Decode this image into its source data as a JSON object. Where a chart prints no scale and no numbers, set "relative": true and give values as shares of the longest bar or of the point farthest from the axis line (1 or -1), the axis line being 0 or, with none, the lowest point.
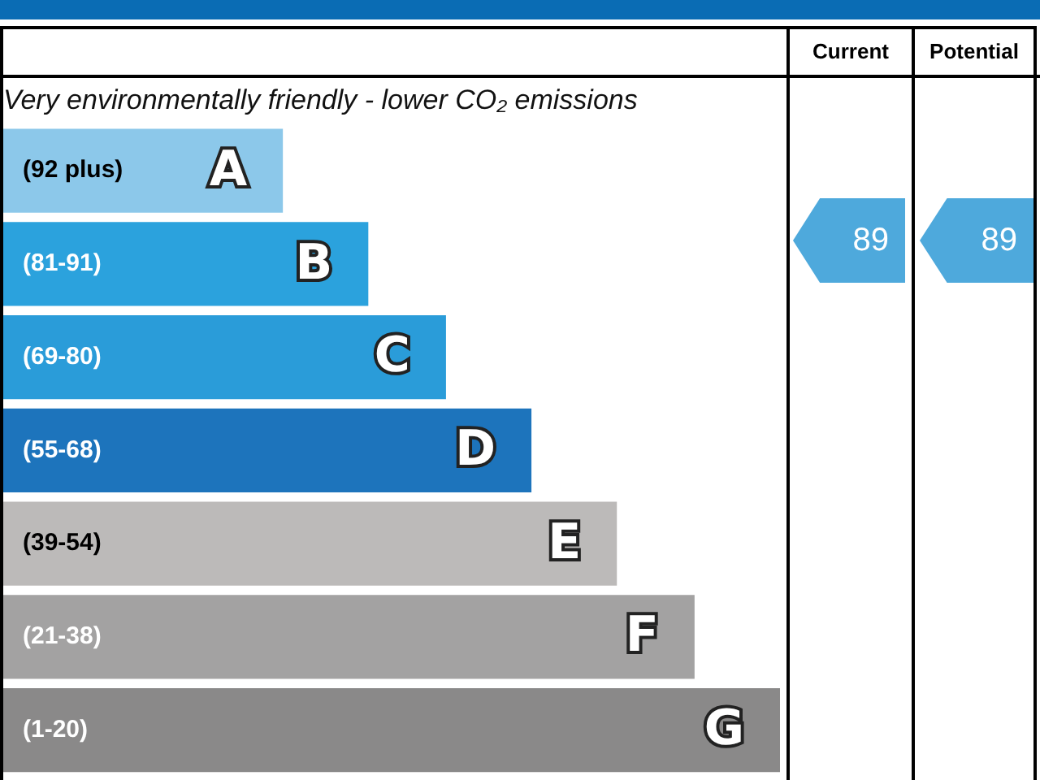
{
  "chart_data": {
    "type": "bar",
    "orientation": "horizontal",
    "relative": true,
    "legend": false,
    "tick_labels": "y",
    "subtitle": "Very environmentally friendly - lower CO₂ emissions",
    "categories": [
      "(92 plus)",
      "(81-91)",
      "(69-80)",
      "(55-68)",
      "(39-54)",
      "(21-38)",
      "(1-20)"
    ],
    "values": [
      0.36,
      0.47,
      0.57,
      0.68,
      0.79,
      0.89,
      1
    ],
    "colors": [
      "#8cc8ea",
      "#2ba2dd",
      "#2a9cd9",
      "#1d74bc",
      "#bcbab9",
      "#a3a2a2",
      "#8a8989"
    ],
    "annotations": [
      "Current",
      "Potential",
      {
        "text": "A",
        "x": 0.36,
        "y": "(92 plus)"
      },
      {
        "text": "B",
        "x": 0.47,
        "y": "(81-91)"
      },
      {
        "text": "C",
        "x": 0.57,
        "y": "(69-80)"
      },
      {
        "text": "D",
        "x": 0.68,
        "y": "(55-68)"
      },
      {
        "text": "E",
        "x": 0.79,
        "y": "(39-54)"
      },
      {
        "text": "F",
        "x": 0.89,
        "y": "(21-38)"
      },
      {
        "text": "G",
        "x": 1,
        "y": "(1-20)"
      },
      "89",
      "89"
    ]
  }
}
